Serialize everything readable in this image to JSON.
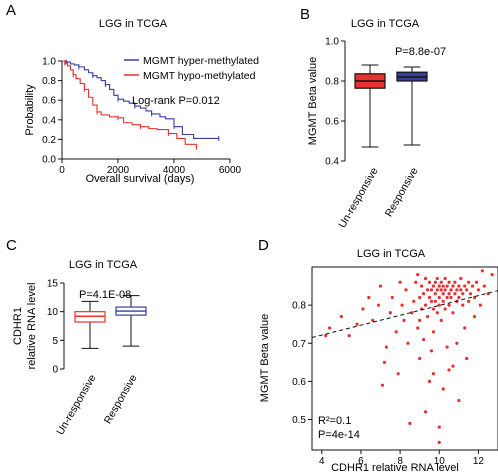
{
  "panels": {
    "A": {
      "label": "A",
      "title": "LGG in TCGA"
    },
    "B": {
      "label": "B",
      "title": "LGG in TCGA"
    },
    "C": {
      "label": "C",
      "title": "LGG in TCGA"
    },
    "D": {
      "label": "D",
      "title": "LGG in TCGA"
    }
  },
  "colors": {
    "red": "#e8312c",
    "blue": "#3a3da0",
    "black": "#111111"
  },
  "chart_data": [
    {
      "panel": "A",
      "type": "line",
      "subtype": "kaplan-meier",
      "title": "LGG in TCGA",
      "xlabel": "Overall survival (days)",
      "ylabel": "Probability",
      "xlim": [
        0,
        6000
      ],
      "ylim": [
        0,
        1.0
      ],
      "xticks": [
        "0",
        "2000",
        "4000",
        "6000"
      ],
      "yticks": [
        "0.0",
        "0.2",
        "0.4",
        "0.6",
        "0.8",
        "1.0"
      ],
      "legend_position": "top-right",
      "annotation": "Log-rank P=0.012",
      "series": [
        {
          "name": "MGMT hyper-methylated",
          "color": "#3a3da0",
          "points": [
            [
              0,
              1.0
            ],
            [
              150,
              0.99
            ],
            [
              300,
              0.97
            ],
            [
              450,
              0.96
            ],
            [
              600,
              0.94
            ],
            [
              800,
              0.91
            ],
            [
              950,
              0.88
            ],
            [
              1100,
              0.85
            ],
            [
              1250,
              0.83
            ],
            [
              1400,
              0.8
            ],
            [
              1550,
              0.76
            ],
            [
              1700,
              0.71
            ],
            [
              1850,
              0.65
            ],
            [
              2000,
              0.61
            ],
            [
              2200,
              0.59
            ],
            [
              2400,
              0.57
            ],
            [
              2600,
              0.54
            ],
            [
              2800,
              0.52
            ],
            [
              3000,
              0.49
            ],
            [
              3200,
              0.46
            ],
            [
              3500,
              0.43
            ],
            [
              3700,
              0.41
            ],
            [
              4000,
              0.33
            ],
            [
              4300,
              0.25
            ],
            [
              4700,
              0.21
            ],
            [
              5600,
              0.21
            ]
          ]
        },
        {
          "name": "MGMT hypo-methylated",
          "color": "#e8312c",
          "points": [
            [
              0,
              1.0
            ],
            [
              100,
              0.98
            ],
            [
              200,
              0.95
            ],
            [
              300,
              0.91
            ],
            [
              400,
              0.86
            ],
            [
              500,
              0.82
            ],
            [
              650,
              0.77
            ],
            [
              800,
              0.71
            ],
            [
              950,
              0.63
            ],
            [
              1100,
              0.55
            ],
            [
              1250,
              0.48
            ],
            [
              1400,
              0.45
            ],
            [
              1700,
              0.43
            ],
            [
              2000,
              0.42
            ],
            [
              2200,
              0.37
            ],
            [
              2500,
              0.35
            ],
            [
              2800,
              0.33
            ],
            [
              3100,
              0.31
            ],
            [
              3400,
              0.3
            ],
            [
              3800,
              0.26
            ],
            [
              4100,
              0.21
            ],
            [
              4400,
              0.15
            ],
            [
              4800,
              0.12
            ]
          ]
        }
      ]
    },
    {
      "panel": "B",
      "type": "boxplot",
      "title": "LGG in TCGA",
      "ylabel": "MGMT Beta value",
      "ylim": [
        0.4,
        1.0
      ],
      "yticks": [
        "0.4",
        "0.6",
        "0.8",
        "1.0"
      ],
      "annotation": "P=8.8e-07",
      "categories": [
        "Un-responsive",
        "Responsive"
      ],
      "boxes": [
        {
          "category": "Un-responsive",
          "color": "#e8312c",
          "min": 0.47,
          "q1": 0.764,
          "median": 0.8,
          "q3": 0.836,
          "max": 0.88
        },
        {
          "category": "Responsive",
          "color": "#3a3da0",
          "min": 0.48,
          "q1": 0.8,
          "median": 0.82,
          "q3": 0.844,
          "max": 0.87
        }
      ]
    },
    {
      "panel": "C",
      "type": "boxplot",
      "title": "LGG in TCGA",
      "ylabel": "CDHR1\nrelative RNA level",
      "ylim": [
        0,
        15
      ],
      "yticks": [
        "0",
        "5",
        "10",
        "15"
      ],
      "annotation": "P=4.1E-08",
      "categories": [
        "Un-responsive",
        "Responsive"
      ],
      "boxes": [
        {
          "category": "Un-responsive",
          "color": "#e8312c",
          "min": 3.6,
          "q1": 8.2,
          "median": 9.2,
          "q3": 10.0,
          "max": 11.8
        },
        {
          "category": "Responsive",
          "color": "#3a3da0",
          "min": 4.0,
          "q1": 9.4,
          "median": 10.1,
          "q3": 10.8,
          "max": 12.8
        }
      ]
    },
    {
      "panel": "D",
      "type": "scatter",
      "title": "LGG in TCGA",
      "xlabel": "CDHR1 relative RNA level",
      "ylabel": "MGMT Beta value",
      "xlim": [
        3.5,
        13
      ],
      "ylim": [
        0.42,
        0.9
      ],
      "xticks": [
        "4",
        "6",
        "8",
        "10",
        "12"
      ],
      "yticks": [
        "0.5",
        "0.6",
        "0.7",
        "0.8"
      ],
      "annotations": [
        "R²=0.1",
        "P=4e-14"
      ],
      "trendline": {
        "x": [
          3.5,
          13.0
        ],
        "y": [
          0.715,
          0.838
        ],
        "style": "dashed"
      },
      "point_color": "#e8312c",
      "points": [
        [
          4.2,
          0.72
        ],
        [
          4.4,
          0.74
        ],
        [
          5.0,
          0.77
        ],
        [
          5.4,
          0.72
        ],
        [
          5.8,
          0.75
        ],
        [
          6.1,
          0.79
        ],
        [
          6.6,
          0.76
        ],
        [
          6.9,
          0.8
        ],
        [
          7.2,
          0.65
        ],
        [
          7.3,
          0.69
        ],
        [
          7.1,
          0.59
        ],
        [
          7.5,
          0.78
        ],
        [
          7.6,
          0.82
        ],
        [
          7.8,
          0.73
        ],
        [
          7.9,
          0.62
        ],
        [
          8.1,
          0.8
        ],
        [
          8.2,
          0.76
        ],
        [
          8.3,
          0.84
        ],
        [
          8.4,
          0.7
        ],
        [
          8.5,
          0.49
        ],
        [
          8.6,
          0.78
        ],
        [
          8.7,
          0.81
        ],
        [
          8.8,
          0.86
        ],
        [
          8.9,
          0.74
        ],
        [
          9.0,
          0.82
        ],
        [
          9.0,
          0.66
        ],
        [
          9.1,
          0.79
        ],
        [
          9.1,
          0.85
        ],
        [
          9.2,
          0.83
        ],
        [
          9.2,
          0.71
        ],
        [
          9.3,
          0.8
        ],
        [
          9.3,
          0.87
        ],
        [
          9.4,
          0.84
        ],
        [
          9.4,
          0.77
        ],
        [
          9.5,
          0.82
        ],
        [
          9.5,
          0.6
        ],
        [
          9.5,
          0.86
        ],
        [
          9.6,
          0.81
        ],
        [
          9.6,
          0.84
        ],
        [
          9.7,
          0.79
        ],
        [
          9.7,
          0.85
        ],
        [
          9.7,
          0.73
        ],
        [
          9.8,
          0.83
        ],
        [
          9.8,
          0.86
        ],
        [
          9.8,
          0.81
        ],
        [
          9.9,
          0.84
        ],
        [
          9.9,
          0.78
        ],
        [
          9.9,
          0.87
        ],
        [
          10.0,
          0.82
        ],
        [
          10.0,
          0.85
        ],
        [
          10.0,
          0.8
        ],
        [
          10.0,
          0.44
        ],
        [
          10.0,
          0.48
        ],
        [
          10.1,
          0.84
        ],
        [
          10.1,
          0.86
        ],
        [
          10.1,
          0.76
        ],
        [
          10.2,
          0.83
        ],
        [
          10.2,
          0.85
        ],
        [
          10.2,
          0.81
        ],
        [
          10.3,
          0.84
        ],
        [
          10.3,
          0.87
        ],
        [
          10.3,
          0.79
        ],
        [
          10.4,
          0.82
        ],
        [
          10.4,
          0.85
        ],
        [
          10.4,
          0.69
        ],
        [
          10.5,
          0.83
        ],
        [
          10.5,
          0.86
        ],
        [
          10.5,
          0.8
        ],
        [
          10.6,
          0.84
        ],
        [
          10.6,
          0.82
        ],
        [
          10.7,
          0.85
        ],
        [
          10.7,
          0.78
        ],
        [
          10.7,
          0.64
        ],
        [
          10.8,
          0.83
        ],
        [
          10.8,
          0.86
        ],
        [
          10.9,
          0.84
        ],
        [
          10.9,
          0.81
        ],
        [
          11.0,
          0.85
        ],
        [
          11.0,
          0.82
        ],
        [
          11.0,
          0.55
        ],
        [
          11.1,
          0.84
        ],
        [
          11.1,
          0.87
        ],
        [
          11.2,
          0.83
        ],
        [
          11.2,
          0.8
        ],
        [
          11.3,
          0.85
        ],
        [
          11.3,
          0.74
        ],
        [
          11.4,
          0.84
        ],
        [
          11.5,
          0.86
        ],
        [
          11.5,
          0.81
        ],
        [
          11.6,
          0.83
        ],
        [
          11.7,
          0.85
        ],
        [
          11.8,
          0.82
        ],
        [
          11.9,
          0.86
        ],
        [
          12.0,
          0.84
        ],
        [
          12.1,
          0.8
        ],
        [
          12.3,
          0.85
        ],
        [
          12.5,
          0.83
        ],
        [
          12.7,
          0.88
        ],
        [
          9.0,
          0.76
        ],
        [
          9.6,
          0.68
        ],
        [
          10.2,
          0.58
        ],
        [
          9.3,
          0.52
        ],
        [
          10.5,
          0.63
        ],
        [
          8.0,
          0.86
        ],
        [
          8.9,
          0.88
        ],
        [
          11.8,
          0.77
        ],
        [
          12.2,
          0.89
        ],
        [
          6.4,
          0.82
        ],
        [
          7.0,
          0.85
        ],
        [
          10.9,
          0.7
        ],
        [
          9.7,
          0.62
        ],
        [
          11.4,
          0.66
        ]
      ]
    }
  ]
}
